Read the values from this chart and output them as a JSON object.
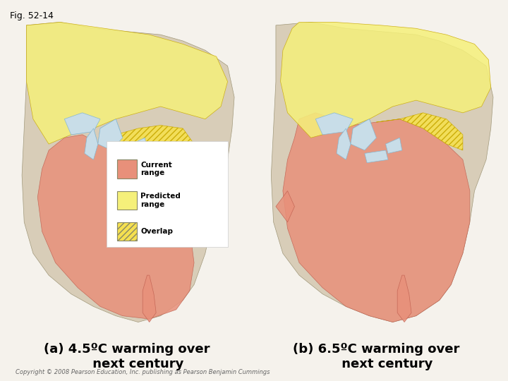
{
  "fig_label": "Fig. 52-14",
  "background_color": "#f0ece0",
  "panel_a_label": "(a) 4.5ºC warming over\n     next century",
  "panel_b_label": "(b) 6.5ºC warming over\n     next century",
  "legend_items": [
    {
      "label": "Current\nrange",
      "color": "#e8907a",
      "hatch": null
    },
    {
      "label": "Predicted\nrange",
      "color": "#f5f07a",
      "hatch": null
    },
    {
      "label": "Overlap",
      "color": "#f5e050",
      "hatch": "////"
    }
  ],
  "copyright_text": "Copyright © 2008 Pearson Education, Inc. publishing as Pearson Benjamin Cummings",
  "fig_label_fontsize": 9,
  "caption_fontsize": 14,
  "copyright_fontsize": 6,
  "map_bg_color": "#b8d8e8",
  "land_color": "#d8cdb8",
  "current_range_color": "#e8907a",
  "predicted_range_color": "#f5f07a",
  "overlap_color": "#f5e050",
  "overlap_hatch_color": "#c8a800",
  "panel_bg": "#c8dde8"
}
